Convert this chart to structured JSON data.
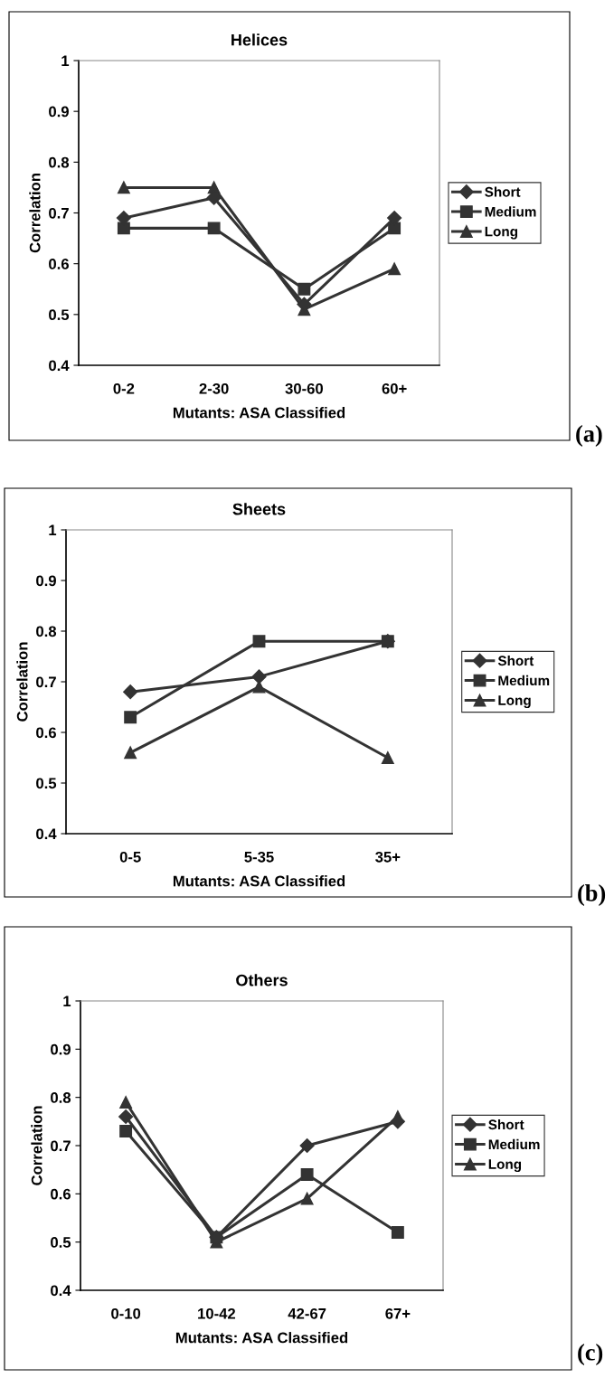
{
  "chart_data": [
    {
      "type": "line",
      "title": "Helices",
      "xlabel": "Mutants: ASA Classified",
      "ylabel": "Correlation",
      "categories": [
        "0-2",
        "2-30",
        "30-60",
        "60+"
      ],
      "series": [
        {
          "name": "Short",
          "color": "#333333",
          "marker": "diamond",
          "values": [
            0.69,
            0.73,
            0.52,
            0.69
          ]
        },
        {
          "name": "Medium",
          "color": "#333333",
          "marker": "square",
          "values": [
            0.67,
            0.67,
            0.55,
            0.67
          ]
        },
        {
          "name": "Long",
          "color": "#333333",
          "marker": "triangle",
          "values": [
            0.75,
            0.75,
            0.51,
            0.59
          ]
        }
      ],
      "ylim": [
        0.4,
        1
      ],
      "yticks": [
        0.4,
        0.5,
        0.6,
        0.7,
        0.8,
        0.9,
        1
      ],
      "grid": false,
      "legend": "right",
      "line_style": "solid",
      "annotations": [
        "(a)"
      ]
    },
    {
      "type": "line",
      "title": "Sheets",
      "xlabel": "Mutants: ASA Classified",
      "ylabel": "Correlation",
      "categories": [
        "0-5",
        "5-35",
        "35+"
      ],
      "series": [
        {
          "name": "Short",
          "color": "#333333",
          "marker": "diamond",
          "values": [
            0.68,
            0.71,
            0.78
          ]
        },
        {
          "name": "Medium",
          "color": "#333333",
          "marker": "square",
          "values": [
            0.63,
            0.78,
            0.78
          ]
        },
        {
          "name": "Long",
          "color": "#333333",
          "marker": "triangle",
          "values": [
            0.56,
            0.69,
            0.55
          ]
        }
      ],
      "ylim": [
        0.4,
        1
      ],
      "yticks": [
        0.4,
        0.5,
        0.6,
        0.7,
        0.8,
        0.9,
        1
      ],
      "grid": false,
      "legend": "right",
      "line_style": "solid",
      "annotations": [
        "(b)"
      ]
    },
    {
      "type": "line",
      "title": "Others",
      "xlabel": "Mutants: ASA Classified",
      "ylabel": "Correlation",
      "categories": [
        "0-10",
        "10-42",
        "42-67",
        "67+"
      ],
      "series": [
        {
          "name": "Short",
          "color": "#333333",
          "marker": "diamond",
          "values": [
            0.76,
            0.51,
            0.7,
            0.75
          ]
        },
        {
          "name": "Medium",
          "color": "#333333",
          "marker": "square",
          "values": [
            0.73,
            0.51,
            0.64,
            0.52
          ]
        },
        {
          "name": "Long",
          "color": "#333333",
          "marker": "triangle",
          "values": [
            0.79,
            0.5,
            0.59,
            0.76
          ]
        }
      ],
      "ylim": [
        0.4,
        1
      ],
      "yticks": [
        0.4,
        0.5,
        0.6,
        0.7,
        0.8,
        0.9,
        1
      ],
      "grid": false,
      "legend": "right",
      "line_style": "solid",
      "annotations": [
        "(c)"
      ]
    }
  ]
}
